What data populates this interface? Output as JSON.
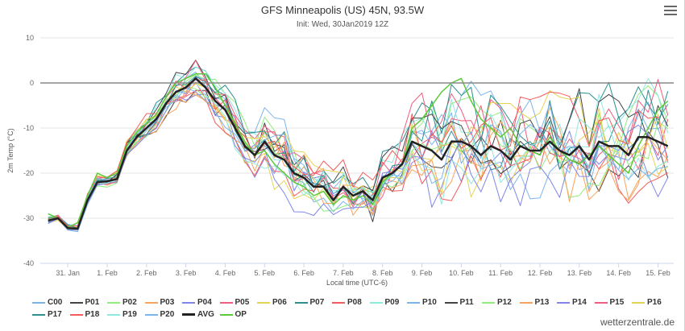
{
  "title": "GFS Minneapolis (US) 45N, 93.5W",
  "subtitle": "Init: Wed, 30Jan2019 12Z",
  "menu_icon": "hamburger-menu-icon",
  "watermark": "wetterzentrale.de",
  "chart_data": {
    "type": "line",
    "xlabel": "Local time (UTC-6)",
    "ylabel": "2m Temp (°C)",
    "ylim": [
      -40,
      10
    ],
    "yticks": [
      "10",
      "0",
      "-10",
      "-20",
      "-30",
      "-40"
    ],
    "xlim": [
      -0.7,
      15.4
    ],
    "xtick_labels": [
      "31. Jan",
      "1. Feb",
      "2. Feb",
      "3. Feb",
      "4. Feb",
      "5. Feb",
      "6. Feb",
      "7. Feb",
      "8. Feb",
      "9. Feb",
      "10. Feb",
      "11. Feb",
      "12. Feb",
      "13. Feb",
      "14. Feb",
      "15. Feb"
    ],
    "x_unit": "days after 31. Jan 00h local, 6-hourly steps",
    "grid": "horizontal",
    "reference_line": 0,
    "legend_position": "bottom",
    "x": [
      -0.5,
      -0.25,
      0,
      0.25,
      0.5,
      0.75,
      1,
      1.25,
      1.5,
      1.75,
      2,
      2.25,
      2.5,
      2.75,
      3,
      3.25,
      3.5,
      3.75,
      4,
      4.25,
      4.5,
      4.75,
      5,
      5.25,
      5.5,
      5.75,
      6,
      6.25,
      6.5,
      6.75,
      7,
      7.25,
      7.5,
      7.75,
      8,
      8.25,
      8.5,
      8.75,
      9,
      9.25,
      9.5,
      9.75,
      10,
      10.25,
      10.5,
      10.75,
      11,
      11.25,
      11.5,
      11.75,
      12,
      12.25,
      12.5,
      12.75,
      13,
      13.25,
      13.5,
      13.75,
      14,
      14.25,
      14.5,
      14.75,
      15,
      15.25
    ],
    "avg": [
      -30.5,
      -30,
      -32.2,
      -32.3,
      -26,
      -22,
      -21.8,
      -21.3,
      -15,
      -12,
      -10,
      -8,
      -4.5,
      -2,
      -1,
      1,
      -1,
      -4,
      -6,
      -10,
      -14,
      -16,
      -13,
      -16,
      -17,
      -20,
      -21,
      -23,
      -23,
      -26,
      -23,
      -25,
      -24,
      -26,
      -21,
      -20,
      -18,
      -13,
      -14,
      -15,
      -17,
      -13,
      -13,
      -14,
      -16,
      -14,
      -15,
      -17,
      -14,
      -15,
      -15,
      -13,
      -15,
      -16,
      -14,
      -17,
      -13,
      -14,
      -14,
      -16,
      -12,
      -12,
      -13,
      -14
    ],
    "op": [
      -29,
      -30,
      -32,
      -31,
      -25,
      -20,
      -21,
      -20,
      -14,
      -11,
      -9,
      -7,
      -3,
      0,
      1,
      2,
      2,
      -1,
      -5,
      -9,
      -13,
      -16,
      -15,
      -18,
      -20,
      -22,
      -23,
      -25,
      -24,
      -27,
      -25,
      -26,
      -25,
      -27,
      -22,
      -20,
      -18,
      -10,
      -8,
      -5,
      -2,
      0,
      1,
      -4,
      -8,
      -10,
      -12,
      -10,
      -14,
      -15,
      -16,
      -12,
      -15,
      -17,
      -18,
      -16,
      -14,
      -16,
      -18,
      -20,
      -14,
      -10,
      -6,
      -4
    ],
    "members": [
      {
        "name": "C00",
        "color": "#7cb5ec",
        "seed": 11
      },
      {
        "name": "P01",
        "color": "#434348",
        "seed": 23
      },
      {
        "name": "P02",
        "color": "#90ed7d",
        "seed": 37
      },
      {
        "name": "P03",
        "color": "#f7a35c",
        "seed": 41
      },
      {
        "name": "P04",
        "color": "#8085e9",
        "seed": 53
      },
      {
        "name": "P05",
        "color": "#f15c80",
        "seed": 67
      },
      {
        "name": "P06",
        "color": "#e4d354",
        "seed": 71
      },
      {
        "name": "P07",
        "color": "#2b908f",
        "seed": 83
      },
      {
        "name": "P08",
        "color": "#f45b5b",
        "seed": 97
      },
      {
        "name": "P09",
        "color": "#91e8e1",
        "seed": 101
      },
      {
        "name": "P10",
        "color": "#7cb5ec",
        "seed": 113
      },
      {
        "name": "P11",
        "color": "#434348",
        "seed": 127
      },
      {
        "name": "P12",
        "color": "#90ed7d",
        "seed": 131
      },
      {
        "name": "P13",
        "color": "#f7a35c",
        "seed": 149
      },
      {
        "name": "P14",
        "color": "#8085e9",
        "seed": 151
      },
      {
        "name": "P15",
        "color": "#f15c80",
        "seed": 163
      },
      {
        "name": "P16",
        "color": "#e4d354",
        "seed": 173
      },
      {
        "name": "P17",
        "color": "#2b908f",
        "seed": 181
      },
      {
        "name": "P18",
        "color": "#f45b5b",
        "seed": 191
      },
      {
        "name": "P19",
        "color": "#91e8e1",
        "seed": 197
      },
      {
        "name": "P20",
        "color": "#7cb5ec",
        "seed": 211
      }
    ],
    "spread": [
      0.5,
      0.5,
      0.5,
      0.5,
      1,
      1,
      1,
      1,
      1.5,
      1.5,
      2,
      2,
      2,
      2.5,
      2.5,
      3,
      3,
      3,
      3.5,
      4,
      4,
      4,
      4.5,
      5,
      5,
      5,
      5,
      4.5,
      4,
      4,
      3.5,
      3.5,
      3.5,
      3.5,
      4,
      4,
      5,
      6,
      7,
      8,
      8,
      8,
      8,
      8,
      8,
      8,
      8,
      8,
      8,
      8,
      8,
      8,
      8,
      8,
      8,
      8,
      8,
      8,
      8,
      8,
      8,
      8,
      8,
      9
    ],
    "legend": [
      {
        "name": "C00",
        "color": "#7cb5ec"
      },
      {
        "name": "P01",
        "color": "#434348"
      },
      {
        "name": "P02",
        "color": "#90ed7d"
      },
      {
        "name": "P03",
        "color": "#f7a35c"
      },
      {
        "name": "P04",
        "color": "#8085e9"
      },
      {
        "name": "P05",
        "color": "#f15c80"
      },
      {
        "name": "P06",
        "color": "#e4d354"
      },
      {
        "name": "P07",
        "color": "#2b908f"
      },
      {
        "name": "P08",
        "color": "#f45b5b"
      },
      {
        "name": "P09",
        "color": "#91e8e1"
      },
      {
        "name": "P10",
        "color": "#7cb5ec"
      },
      {
        "name": "P11",
        "color": "#434348"
      },
      {
        "name": "P12",
        "color": "#90ed7d"
      },
      {
        "name": "P13",
        "color": "#f7a35c"
      },
      {
        "name": "P14",
        "color": "#8085e9"
      },
      {
        "name": "P15",
        "color": "#f15c80"
      },
      {
        "name": "P16",
        "color": "#e4d354"
      },
      {
        "name": "P17",
        "color": "#2b908f"
      },
      {
        "name": "P18",
        "color": "#f45b5b"
      },
      {
        "name": "P19",
        "color": "#91e8e1"
      },
      {
        "name": "P20",
        "color": "#7cb5ec"
      },
      {
        "name": "AVG",
        "color": "#222222"
      },
      {
        "name": "OP",
        "color": "#5cc93a"
      }
    ]
  }
}
